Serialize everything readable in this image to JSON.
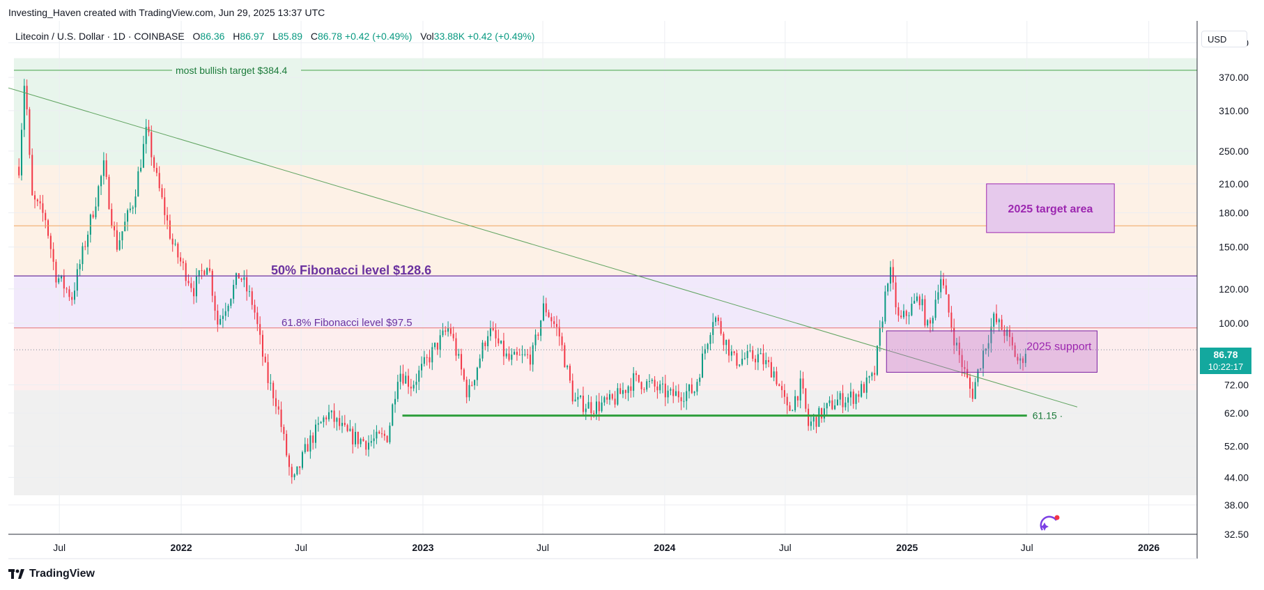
{
  "header": {
    "credit": "Investing_Haven created with TradingView.com, Jun 29, 2025 13:37 UTC"
  },
  "legend": {
    "symbol": "Litecoin / U.S. Dollar · 1D · COINBASE",
    "o_label": "O",
    "o_value": "86.36",
    "h_label": "H",
    "h_value": "86.97",
    "l_label": "L",
    "l_value": "85.89",
    "c_label": "C",
    "c_value": "86.78",
    "change": "+0.42 (+0.49%)",
    "vol_label": "Vol",
    "vol_value": "33.88K",
    "vol_change": "+0.42 (+0.49%)"
  },
  "currency_button": "USD",
  "current_price": {
    "price": "86.78",
    "countdown": "10:22:17"
  },
  "footer": {
    "brand": "TradingView"
  },
  "colors": {
    "up": "#089981",
    "down": "#f23645",
    "purple": "#6a329f",
    "green_line": "#43a047",
    "zone_green": "#e8f5ec",
    "zone_orange": "#fdf1e6",
    "zone_purple": "#f1e9fb",
    "zone_pink": "#fdeeee",
    "zone_gray": "#f0f0f0",
    "tag": "#13a89e"
  },
  "chart_data": {
    "type": "candlestick",
    "scale": "log",
    "ylim": [
      32.5,
      500
    ],
    "xlim": [
      "2021-04-15",
      "2026-03-15"
    ],
    "y_ticks": [
      "445.00",
      "370.00",
      "310.00",
      "250.00",
      "210.00",
      "180.00",
      "150.00",
      "120.00",
      "100.00",
      "72.00",
      "62.00",
      "52.00",
      "44.00",
      "38.00",
      "32.50"
    ],
    "x_ticks": [
      {
        "date": "2021-07-01",
        "label": "Jul",
        "bold": false
      },
      {
        "date": "2022-01-01",
        "label": "2022",
        "bold": true
      },
      {
        "date": "2022-07-01",
        "label": "Jul",
        "bold": false
      },
      {
        "date": "2023-01-01",
        "label": "2023",
        "bold": true
      },
      {
        "date": "2023-07-01",
        "label": "Jul",
        "bold": false
      },
      {
        "date": "2024-01-01",
        "label": "2024",
        "bold": true
      },
      {
        "date": "2024-07-01",
        "label": "Jul",
        "bold": false
      },
      {
        "date": "2025-01-01",
        "label": "2025",
        "bold": true
      },
      {
        "date": "2025-07-01",
        "label": "Jul",
        "bold": false
      },
      {
        "date": "2026-01-01",
        "label": "2026",
        "bold": true
      }
    ],
    "price_path": [
      [
        "2021-05-01",
        230
      ],
      [
        "2021-05-10",
        380
      ],
      [
        "2021-05-20",
        195
      ],
      [
        "2021-06-10",
        175
      ],
      [
        "2021-06-25",
        130
      ],
      [
        "2021-07-20",
        115
      ],
      [
        "2021-08-20",
        180
      ],
      [
        "2021-09-06",
        230
      ],
      [
        "2021-09-25",
        150
      ],
      [
        "2021-10-20",
        190
      ],
      [
        "2021-11-10",
        280
      ],
      [
        "2021-11-25",
        215
      ],
      [
        "2021-12-20",
        150
      ],
      [
        "2022-01-20",
        120
      ],
      [
        "2022-02-10",
        140
      ],
      [
        "2022-02-25",
        100
      ],
      [
        "2022-03-30",
        130
      ],
      [
        "2022-04-20",
        110
      ],
      [
        "2022-05-10",
        75
      ],
      [
        "2022-05-25",
        66
      ],
      [
        "2022-06-18",
        42
      ],
      [
        "2022-07-10",
        52
      ],
      [
        "2022-08-10",
        62
      ],
      [
        "2022-09-10",
        55
      ],
      [
        "2022-10-10",
        53
      ],
      [
        "2022-11-09",
        55
      ],
      [
        "2022-11-25",
        78
      ],
      [
        "2022-12-15",
        72
      ],
      [
        "2023-01-20",
        88
      ],
      [
        "2023-02-10",
        98
      ],
      [
        "2023-03-10",
        68
      ],
      [
        "2023-04-10",
        97
      ],
      [
        "2023-05-10",
        82
      ],
      [
        "2023-06-15",
        84
      ],
      [
        "2023-07-03",
        110
      ],
      [
        "2023-07-25",
        95
      ],
      [
        "2023-08-17",
        66
      ],
      [
        "2023-09-15",
        64
      ],
      [
        "2023-10-15",
        66
      ],
      [
        "2023-11-15",
        74
      ],
      [
        "2023-12-10",
        72
      ],
      [
        "2024-01-10",
        68
      ],
      [
        "2024-02-15",
        70
      ],
      [
        "2024-03-15",
        105
      ],
      [
        "2024-04-15",
        82
      ],
      [
        "2024-05-20",
        84
      ],
      [
        "2024-06-15",
        77
      ],
      [
        "2024-07-05",
        62
      ],
      [
        "2024-07-25",
        72
      ],
      [
        "2024-08-05",
        58
      ],
      [
        "2024-09-15",
        66
      ],
      [
        "2024-10-15",
        68
      ],
      [
        "2024-11-12",
        75
      ],
      [
        "2024-12-05",
        135
      ],
      [
        "2024-12-20",
        100
      ],
      [
        "2025-01-20",
        115
      ],
      [
        "2025-02-03",
        95
      ],
      [
        "2025-02-20",
        130
      ],
      [
        "2025-03-15",
        90
      ],
      [
        "2025-04-09",
        68
      ],
      [
        "2025-04-25",
        85
      ],
      [
        "2025-05-12",
        102
      ],
      [
        "2025-05-30",
        95
      ],
      [
        "2025-06-20",
        80
      ],
      [
        "2025-06-29",
        86.78
      ]
    ],
    "zones": [
      {
        "from": 232,
        "to": 410,
        "color": "zone_green"
      },
      {
        "from": 128.6,
        "to": 232,
        "color": "zone_orange"
      },
      {
        "from": 97.5,
        "to": 128.6,
        "color": "zone_purple"
      },
      {
        "from": 70,
        "to": 97.5,
        "color": "zone_pink"
      },
      {
        "from": 40,
        "to": 70,
        "color": "zone_gray"
      }
    ],
    "annotations": {
      "bullish_label": "most bullish target $384.4",
      "bullish_level": 384.4,
      "fib50_label": "50% Fibonacci level $128.6",
      "fib50_level": 128.6,
      "fib618_label": "61.8% Fibonacci level $97.5",
      "fib618_level": 97.5,
      "orange_level": 168,
      "support_line_label": "61.15",
      "support_line_level": 61.15,
      "support_line_start": "2022-12-01",
      "support_line_end": "2025-07-01",
      "trendline": {
        "start": [
          "2021-04-15",
          350
        ],
        "end": [
          "2025-09-15",
          64
        ]
      },
      "target_box": {
        "label": "2025 target area",
        "x0": "2025-05-01",
        "x1": "2025-11-10",
        "y0": 162,
        "y1": 210
      },
      "support_box": {
        "label": "2025 support",
        "x0": "2024-12-01",
        "x1": "2025-10-15",
        "y0": 77,
        "y1": 96
      }
    },
    "last_price": 86.78
  }
}
